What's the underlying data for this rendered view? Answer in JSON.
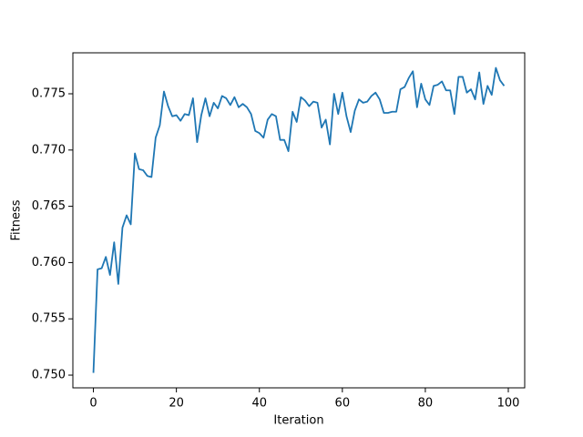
{
  "chart_data": {
    "type": "line",
    "xlabel": "Iteration",
    "ylabel": "Fitness",
    "x": [
      0,
      1,
      2,
      3,
      4,
      5,
      6,
      7,
      8,
      9,
      10,
      11,
      12,
      13,
      14,
      15,
      16,
      17,
      18,
      19,
      20,
      21,
      22,
      23,
      24,
      25,
      26,
      27,
      28,
      29,
      30,
      31,
      32,
      33,
      34,
      35,
      36,
      37,
      38,
      39,
      40,
      41,
      42,
      43,
      44,
      45,
      46,
      47,
      48,
      49,
      50,
      51,
      52,
      53,
      54,
      55,
      56,
      57,
      58,
      59,
      60,
      61,
      62,
      63,
      64,
      65,
      66,
      67,
      68,
      69,
      70,
      71,
      72,
      73,
      74,
      75,
      76,
      77,
      78,
      79,
      80,
      81,
      82,
      83,
      84,
      85,
      86,
      87,
      88,
      89,
      90,
      91,
      92,
      93,
      94,
      95,
      96,
      97,
      98,
      99
    ],
    "series": [
      {
        "color": "#1f77b4",
        "values": [
          0.7502,
          0.7594,
          0.7595,
          0.7605,
          0.7589,
          0.7618,
          0.7581,
          0.7631,
          0.7642,
          0.7634,
          0.7697,
          0.7683,
          0.7682,
          0.7677,
          0.7676,
          0.7711,
          0.7722,
          0.7752,
          0.7739,
          0.773,
          0.7731,
          0.7726,
          0.7732,
          0.7731,
          0.7746,
          0.7707,
          0.7731,
          0.7746,
          0.773,
          0.7742,
          0.7737,
          0.7748,
          0.7746,
          0.774,
          0.7747,
          0.7738,
          0.7741,
          0.7738,
          0.7732,
          0.7717,
          0.7715,
          0.7711,
          0.7727,
          0.7732,
          0.773,
          0.7709,
          0.7709,
          0.7699,
          0.7734,
          0.7725,
          0.7747,
          0.7744,
          0.7739,
          0.7743,
          0.7742,
          0.772,
          0.7727,
          0.7705,
          0.775,
          0.7732,
          0.7751,
          0.773,
          0.7716,
          0.7735,
          0.7745,
          0.7742,
          0.7743,
          0.7748,
          0.7751,
          0.7745,
          0.7733,
          0.7733,
          0.7734,
          0.7734,
          0.7754,
          0.7756,
          0.7764,
          0.777,
          0.7738,
          0.7759,
          0.7745,
          0.774,
          0.7757,
          0.7758,
          0.7761,
          0.7753,
          0.7753,
          0.7732,
          0.7765,
          0.7765,
          0.7751,
          0.7754,
          0.7745,
          0.7769,
          0.7741,
          0.7757,
          0.7749,
          0.7773,
          0.7762,
          0.7757
        ]
      }
    ],
    "xlim": [
      -4.95,
      103.95
    ],
    "xticks": [
      0,
      20,
      40,
      60,
      80,
      100
    ],
    "ylim": [
      0.74887,
      0.77864
    ],
    "yticks": [
      {
        "value": 0.75,
        "label": "0.750"
      },
      {
        "value": 0.755,
        "label": "0.755"
      },
      {
        "value": 0.76,
        "label": "0.760"
      },
      {
        "value": 0.765,
        "label": "0.765"
      },
      {
        "value": 0.77,
        "label": "0.770"
      },
      {
        "value": 0.775,
        "label": "0.775"
      }
    ],
    "grid": false
  }
}
